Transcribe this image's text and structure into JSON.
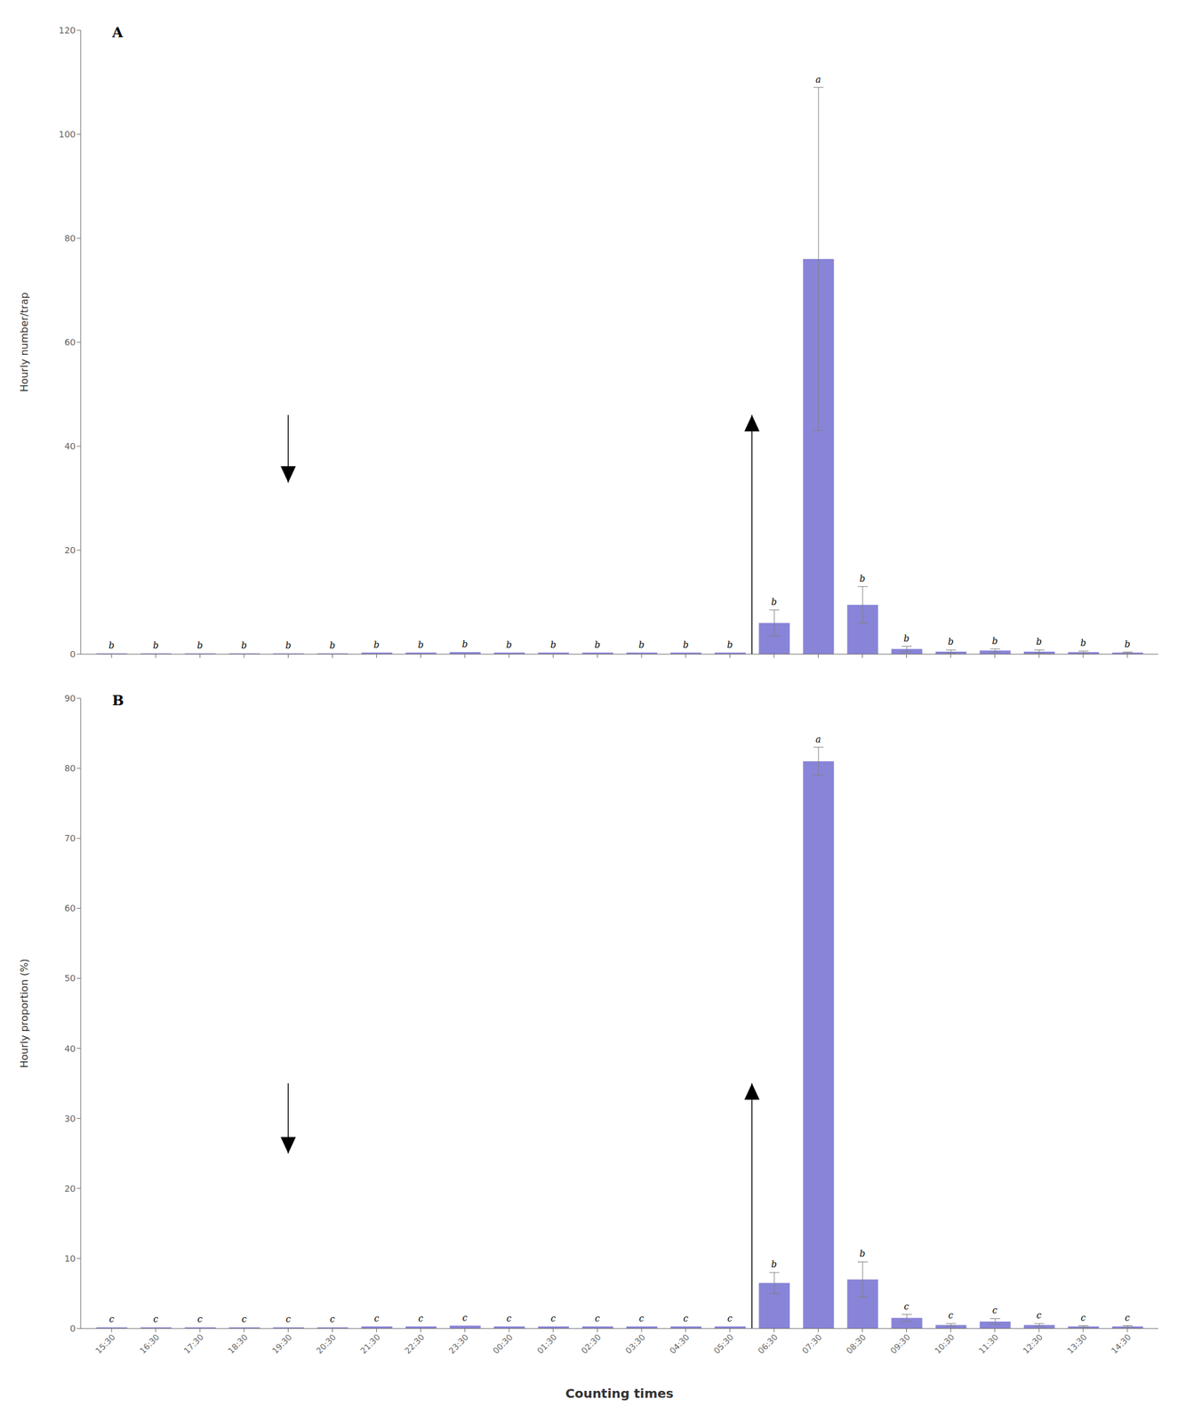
{
  "chart_data": [
    {
      "type": "bar",
      "panel_label": "A",
      "ylabel": "Hourly number/trap",
      "categories": [
        "15:30",
        "16:30",
        "17:30",
        "18:30",
        "19:30",
        "20:30",
        "21:30",
        "22:30",
        "23:30",
        "00:30",
        "01:30",
        "02:30",
        "03:30",
        "04:30",
        "05:30",
        "06:30",
        "07:30",
        "08:30",
        "09:30",
        "10:30",
        "11:30",
        "12:30",
        "13:30",
        "14:30"
      ],
      "values": [
        0.15,
        0.15,
        0.15,
        0.15,
        0.15,
        0.15,
        0.3,
        0.3,
        0.4,
        0.3,
        0.3,
        0.3,
        0.3,
        0.3,
        0.3,
        6.0,
        76.0,
        9.5,
        1.0,
        0.5,
        0.7,
        0.5,
        0.4,
        0.3
      ],
      "errors": [
        0.0,
        0.0,
        0.0,
        0.0,
        0.0,
        0.0,
        0.0,
        0.0,
        0.0,
        0.0,
        0.0,
        0.0,
        0.0,
        0.0,
        0.0,
        2.5,
        33.0,
        3.5,
        0.5,
        0.3,
        0.3,
        0.3,
        0.2,
        0.1
      ],
      "stat_labels": [
        "b",
        "b",
        "b",
        "b",
        "b",
        "b",
        "b",
        "b",
        "b",
        "b",
        "b",
        "b",
        "b",
        "b",
        "b",
        "b",
        "a",
        "b",
        "b",
        "b",
        "b",
        "b",
        "b",
        "b"
      ],
      "arrows": [
        {
          "direction": "down",
          "category": "19:30",
          "from": 46,
          "to": 33
        },
        {
          "direction": "up",
          "between": [
            "05:30",
            "06:30"
          ],
          "from": 0,
          "to": 46
        }
      ],
      "ylim": [
        0,
        120
      ],
      "yticks": [
        0,
        20,
        40,
        60,
        80,
        100,
        120
      ],
      "color": "#8884d8",
      "grid": false,
      "tick_labels": "y"
    },
    {
      "type": "bar",
      "panel_label": "B",
      "ylabel": "Hourly proportion (%)",
      "xlabel": "Counting times",
      "categories": [
        "15:30",
        "16:30",
        "17:30",
        "18:30",
        "19:30",
        "20:30",
        "21:30",
        "22:30",
        "23:30",
        "00:30",
        "01:30",
        "02:30",
        "03:30",
        "04:30",
        "05:30",
        "06:30",
        "07:30",
        "08:30",
        "09:30",
        "10:30",
        "11:30",
        "12:30",
        "13:30",
        "14:30"
      ],
      "values": [
        0.15,
        0.15,
        0.15,
        0.15,
        0.15,
        0.15,
        0.3,
        0.3,
        0.4,
        0.3,
        0.3,
        0.3,
        0.3,
        0.3,
        0.3,
        6.5,
        81.0,
        7.0,
        1.5,
        0.5,
        1.0,
        0.5,
        0.3,
        0.3
      ],
      "errors": [
        0.0,
        0.0,
        0.0,
        0.0,
        0.0,
        0.0,
        0.0,
        0.0,
        0.0,
        0.0,
        0.0,
        0.0,
        0.0,
        0.0,
        0.0,
        1.5,
        2.0,
        2.5,
        0.5,
        0.2,
        0.4,
        0.2,
        0.1,
        0.1
      ],
      "stat_labels": [
        "c",
        "c",
        "c",
        "c",
        "c",
        "c",
        "c",
        "c",
        "c",
        "c",
        "c",
        "c",
        "c",
        "c",
        "c",
        "b",
        "a",
        "b",
        "c",
        "c",
        "c",
        "c",
        "c",
        "c"
      ],
      "arrows": [
        {
          "direction": "down",
          "category": "19:30",
          "from": 35,
          "to": 25
        },
        {
          "direction": "up",
          "between": [
            "05:30",
            "06:30"
          ],
          "from": 0,
          "to": 35
        }
      ],
      "ylim": [
        0,
        90
      ],
      "yticks": [
        0,
        10,
        20,
        30,
        40,
        50,
        60,
        70,
        80,
        90
      ],
      "color": "#8884d8",
      "grid": false
    }
  ]
}
